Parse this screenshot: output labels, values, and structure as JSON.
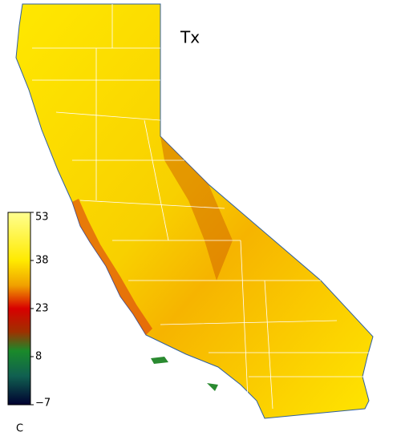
{
  "map": {
    "title": "Tx",
    "colorbar": {
      "unit": "C",
      "range": [
        -7,
        53
      ],
      "ticks": [
        53,
        38,
        23,
        8,
        {
          "value": -7,
          "label": "−7"
        }
      ]
    }
  }
}
